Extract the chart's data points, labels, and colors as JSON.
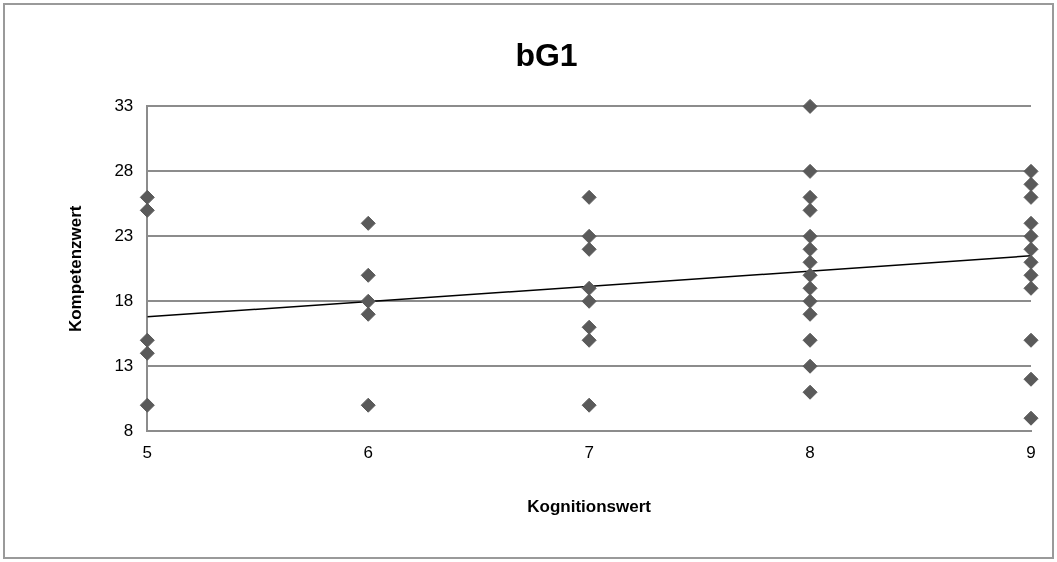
{
  "chart_data": {
    "type": "scatter",
    "title": "bG1",
    "xlabel": "Kognitionswert",
    "ylabel": "Kompetenzwert",
    "xlim": [
      5,
      9
    ],
    "xticks": [
      5,
      6,
      7,
      8,
      9
    ],
    "ylim": [
      8,
      33
    ],
    "yticks": [
      8,
      13,
      18,
      23,
      28,
      33
    ],
    "grid": "y",
    "legend": false,
    "series": [
      {
        "marker": "diamond",
        "color": "#5a5a5a",
        "x": [
          5,
          5,
          5,
          5,
          5,
          6,
          6,
          6,
          6,
          6,
          7,
          7,
          7,
          7,
          7,
          7,
          7,
          7,
          8,
          8,
          8,
          8,
          8,
          8,
          8,
          8,
          8,
          8,
          8,
          8,
          8,
          8,
          9,
          9,
          9,
          9,
          9,
          9,
          9,
          9,
          9,
          9,
          9,
          9
        ],
        "values": [
          26,
          25,
          15,
          14,
          10,
          24,
          20,
          18,
          17,
          10,
          26,
          23,
          22,
          19,
          18,
          16,
          15,
          10,
          33,
          28,
          26,
          25,
          23,
          22,
          21,
          20,
          19,
          18,
          17,
          15,
          13,
          11,
          28,
          27,
          26,
          24,
          23,
          22,
          21,
          20,
          19,
          15,
          12,
          9
        ]
      },
      {
        "type": "line",
        "color": "#000000",
        "x": [
          5,
          9
        ],
        "values": [
          16.8,
          21.5
        ]
      }
    ]
  }
}
